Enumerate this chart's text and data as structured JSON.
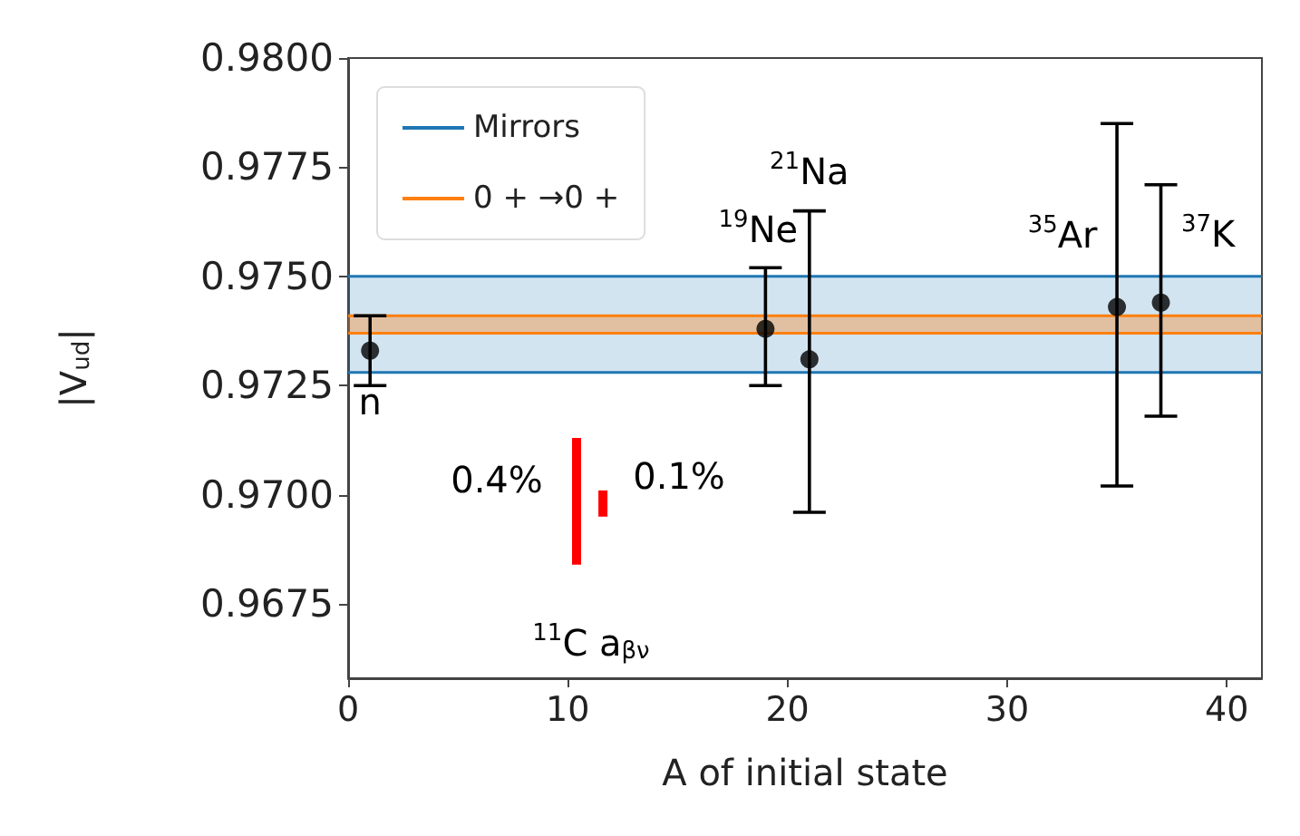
{
  "chart_data": {
    "type": "scatter",
    "xlabel": "A of initial state",
    "ylabel": "|V$_{ud}$|",
    "xlim": [
      0,
      41.6
    ],
    "xticks": [
      0,
      10,
      20,
      30,
      40
    ],
    "ylim": [
      0.9658,
      0.98
    ],
    "yticks": [
      {
        "value": 0.9675,
        "label": "0.9675"
      },
      {
        "value": 0.97,
        "label": "0.9700"
      },
      {
        "value": 0.9725,
        "label": "0.9725"
      },
      {
        "value": 0.975,
        "label": "0.9750"
      },
      {
        "value": 0.9775,
        "label": "0.9775"
      },
      {
        "value": 0.98,
        "label": "0.9800"
      }
    ],
    "legend": "top left",
    "bands": [
      {
        "axis": "y",
        "from": 0.9728,
        "to": 0.975,
        "label": "Mirrors",
        "color": "#1f77b4"
      },
      {
        "axis": "y",
        "from": 0.9737,
        "to": 0.9741,
        "label": "0 + →0 +",
        "color": "#ff7f0e"
      }
    ],
    "ref_lines": [
      {
        "axis": "y",
        "value": 0.975,
        "color": "#1f77b4"
      },
      {
        "axis": "y",
        "value": 0.9728,
        "color": "#1f77b4"
      },
      {
        "axis": "y",
        "value": 0.9741,
        "color": "#ff7f0e"
      },
      {
        "axis": "y",
        "value": 0.9737,
        "color": "#ff7f0e"
      }
    ],
    "series": [
      {
        "color": "#000000",
        "marker": "circle",
        "x": [
          1,
          19,
          21,
          35,
          37
        ],
        "values": [
          0.9733,
          0.9738,
          0.9731,
          0.9743,
          0.9744
        ],
        "errors": [
          0.0008,
          [
            0.9725,
            0.9752
          ],
          [
            0.9696,
            0.9765
          ],
          [
            0.9702,
            0.9785
          ],
          [
            0.9718,
            0.9771
          ]
        ]
      },
      {
        "type": "bar",
        "color": "#ff0000",
        "x": [
          10.4,
          11.6
        ],
        "base": [
          0.9684,
          0.9695
        ],
        "values": [
          0.0029,
          0.0006
        ]
      }
    ],
    "annotations": [
      {
        "text": "n",
        "x": 1,
        "y": 0.9733
      },
      {
        "text": "$^{19}$Ne",
        "x": 19,
        "y": 0.9752
      },
      {
        "text": "$^{21}$Na",
        "x": 21,
        "y": 0.9765
      },
      {
        "text": "$^{35}$Ar",
        "x": 35,
        "y": 0.9743
      },
      {
        "text": "$^{37}$K",
        "x": 37,
        "y": 0.9744
      },
      {
        "text": "0.4%",
        "x": 10.4,
        "y": 0.9713
      },
      {
        "text": "0.1%",
        "x": 11.6,
        "y": 0.9701
      },
      {
        "text": "$^{11}$C a$_{βν}$",
        "x": 10.4,
        "y": 0.9684
      }
    ]
  }
}
